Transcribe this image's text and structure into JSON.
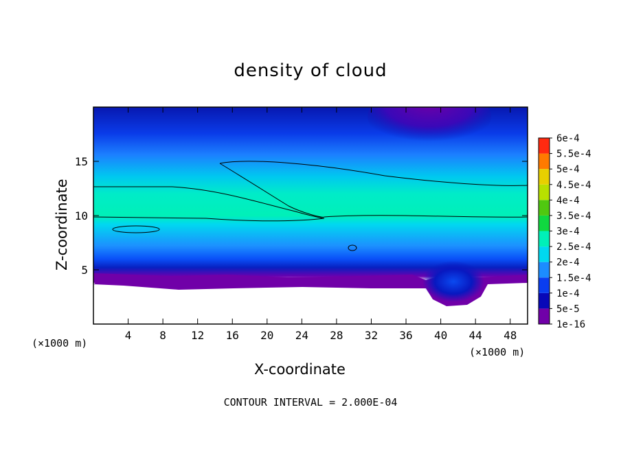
{
  "chart_data": {
    "type": "heatmap",
    "title": "density of cloud",
    "xlabel": "X-coordinate",
    "ylabel": "Z-coordinate",
    "x_unit": "(×1000 m)",
    "y_unit": "(×1000 m)",
    "xlim": [
      0,
      50
    ],
    "ylim": [
      0,
      20
    ],
    "xticks": [
      4,
      8,
      12,
      16,
      20,
      24,
      28,
      32,
      36,
      40,
      44,
      48
    ],
    "yticks": [
      5,
      10,
      15
    ],
    "footer": "CONTOUR INTERVAL = 2.000E-04",
    "colorbar": {
      "labels": [
        "1e-16",
        "5e-5",
        "1e-4",
        "1.5e-4",
        "2e-4",
        "2.5e-4",
        "3e-4",
        "3.5e-4",
        "4e-4",
        "4.5e-4",
        "5e-4",
        "5.5e-4",
        "6e-4"
      ],
      "colors": [
        "#7000a8",
        "#0808b8",
        "#0a3df0",
        "#1c8cff",
        "#00d8f0",
        "#00f0b8",
        "#10d840",
        "#50c810",
        "#b8e000",
        "#e8d000",
        "#ff7a00",
        "#ff2a10",
        "#ff8080"
      ]
    },
    "bands": [
      {
        "name": "cloud top (purple)",
        "z": 19,
        "value": "1e-16"
      },
      {
        "name": "upper dark blue",
        "z": 17,
        "value": "5e-5"
      },
      {
        "name": "mid cyan/green layer",
        "z": [
          10,
          15
        ],
        "value": "2e-4"
      },
      {
        "name": "lower blue",
        "z": 6,
        "value": "1e-4"
      },
      {
        "name": "cloud base (purple)",
        "z": 4,
        "value": "1e-16"
      }
    ],
    "contour_levels": [
      0.0002
    ]
  }
}
